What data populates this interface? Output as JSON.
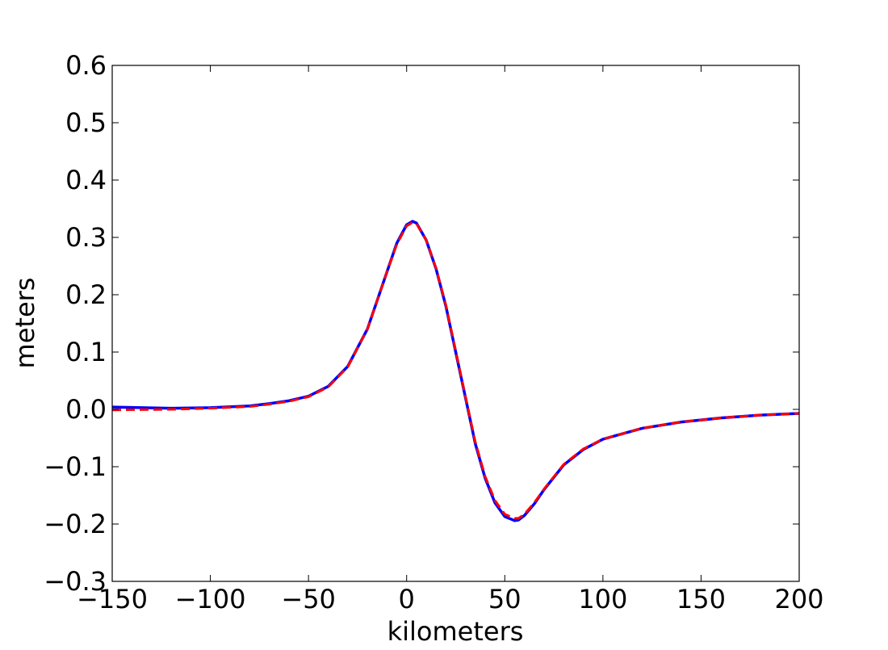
{
  "chart_data": {
    "type": "line",
    "title": "",
    "xlabel": "kilometers",
    "ylabel": "meters",
    "xlim": [
      -150,
      200
    ],
    "ylim": [
      -0.3,
      0.6
    ],
    "xticks": [
      -150,
      -100,
      -50,
      0,
      50,
      100,
      150,
      200
    ],
    "xtick_labels": [
      "−150",
      "−100",
      "−50",
      "0",
      "50",
      "100",
      "150",
      "200"
    ],
    "yticks": [
      -0.3,
      -0.2,
      -0.1,
      0.0,
      0.1,
      0.2,
      0.3,
      0.4,
      0.5,
      0.6
    ],
    "ytick_labels": [
      "−0.3",
      "−0.2",
      "−0.1",
      "0.0",
      "0.1",
      "0.2",
      "0.3",
      "0.4",
      "0.5",
      "0.6"
    ],
    "grid": false,
    "legend": "none",
    "series": [
      {
        "color": "#0000ff",
        "style": "solid",
        "x": [
          -150,
          -120,
          -100,
          -80,
          -70,
          -60,
          -50,
          -40,
          -30,
          -20,
          -10,
          -5,
          0,
          3,
          5,
          10,
          15,
          20,
          25,
          30,
          35,
          40,
          45,
          50,
          55,
          57,
          60,
          65,
          70,
          80,
          90,
          100,
          120,
          140,
          160,
          180,
          200
        ],
        "y": [
          0.004,
          0.002,
          0.003,
          0.006,
          0.01,
          0.015,
          0.023,
          0.04,
          0.075,
          0.14,
          0.24,
          0.29,
          0.322,
          0.328,
          0.325,
          0.295,
          0.245,
          0.18,
          0.1,
          0.02,
          -0.06,
          -0.12,
          -0.163,
          -0.187,
          -0.194,
          -0.193,
          -0.185,
          -0.165,
          -0.14,
          -0.097,
          -0.07,
          -0.052,
          -0.033,
          -0.022,
          -0.015,
          -0.01,
          -0.007
        ]
      },
      {
        "color": "#ff0000",
        "style": "dashed",
        "x": [
          -150,
          -120,
          -100,
          -80,
          -70,
          -60,
          -50,
          -40,
          -30,
          -20,
          -10,
          -5,
          0,
          3,
          5,
          10,
          15,
          20,
          25,
          30,
          35,
          40,
          45,
          50,
          55,
          57,
          60,
          65,
          70,
          80,
          90,
          100,
          120,
          140,
          160,
          180,
          200
        ],
        "y": [
          -0.001,
          0.0,
          0.002,
          0.005,
          0.009,
          0.014,
          0.022,
          0.039,
          0.074,
          0.14,
          0.24,
          0.288,
          0.32,
          0.326,
          0.324,
          0.295,
          0.246,
          0.182,
          0.102,
          0.022,
          -0.057,
          -0.117,
          -0.159,
          -0.183,
          -0.19,
          -0.19,
          -0.183,
          -0.163,
          -0.139,
          -0.096,
          -0.069,
          -0.052,
          -0.033,
          -0.022,
          -0.015,
          -0.01,
          -0.007
        ]
      }
    ]
  }
}
